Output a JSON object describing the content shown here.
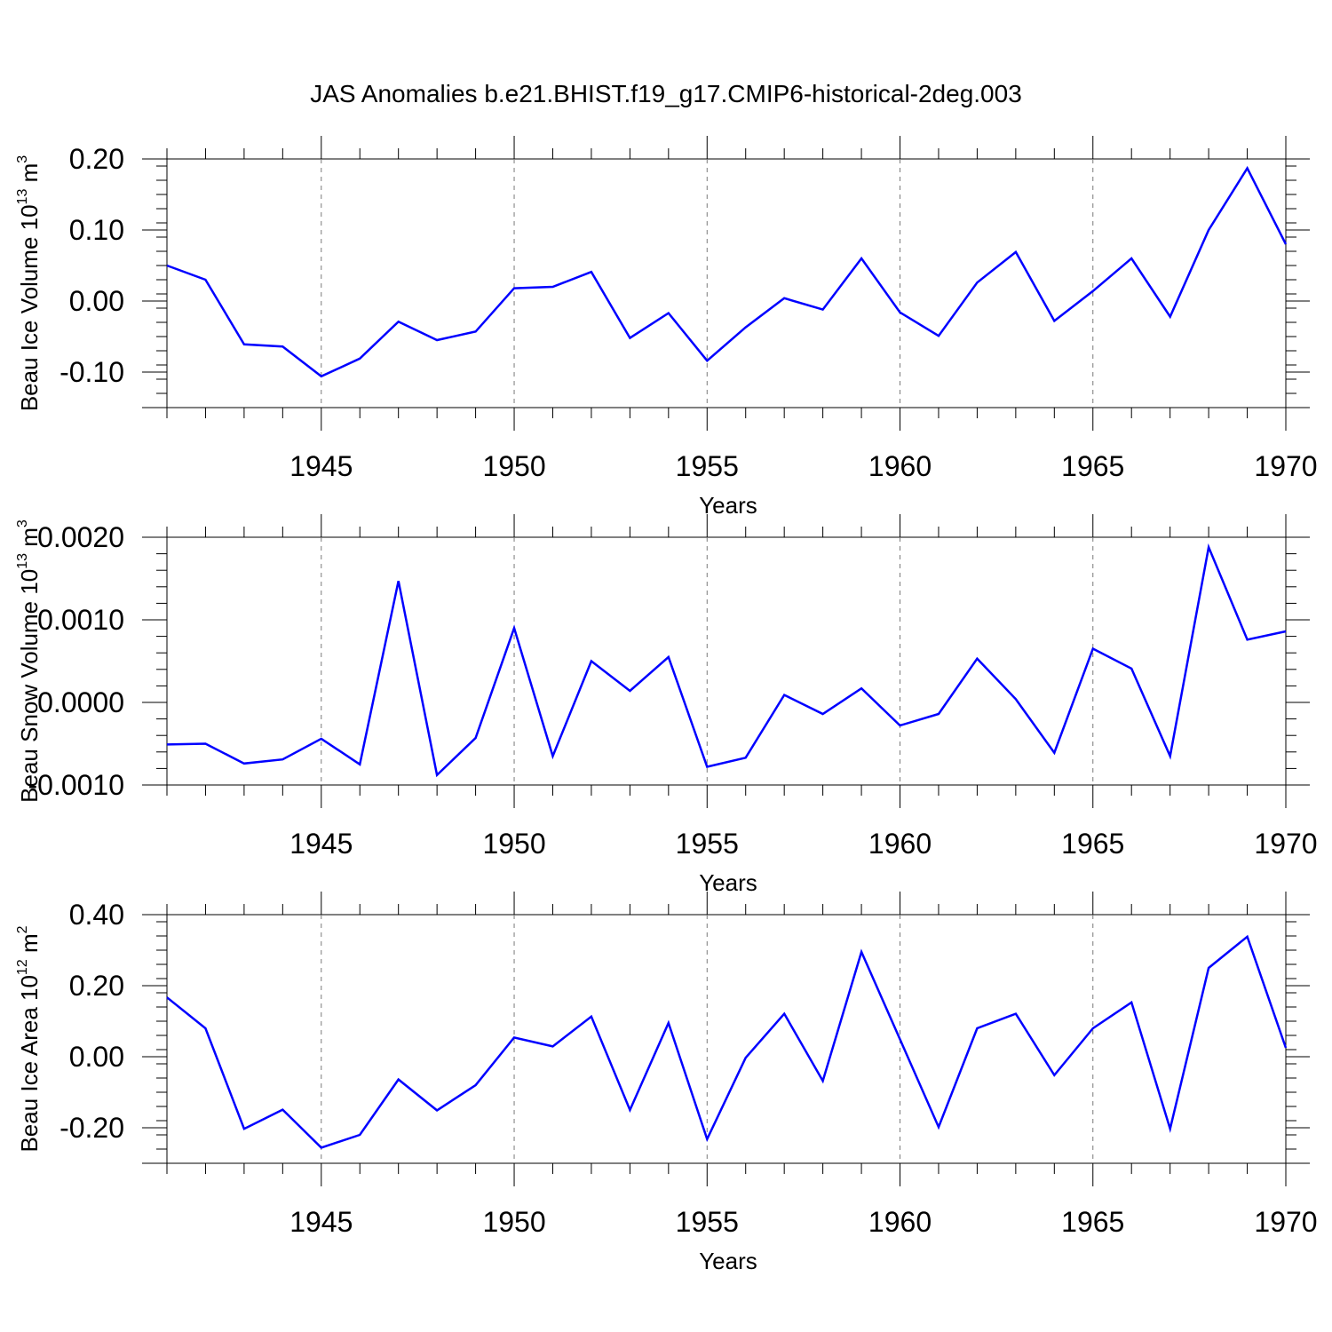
{
  "figure": {
    "title": "JAS Anomalies b.e21.BHIST.f19_g17.CMIP6-historical-2deg.003"
  },
  "chart_data": [
    {
      "type": "line",
      "title": "",
      "ylabel": {
        "text": "Beau Ice Volume 10",
        "exp": "13",
        "unit": " m",
        "unit_exp": "3"
      },
      "xlabel": "Years",
      "xlim": [
        1941,
        1970
      ],
      "ylim": [
        -0.15,
        0.2
      ],
      "yticks": [
        0.2,
        0.1,
        0.0,
        -0.1
      ],
      "ytick_labels": [
        "0.20",
        "0.10",
        "0.00",
        "-0.10"
      ],
      "xticks": [
        1945,
        1950,
        1955,
        1960,
        1965,
        1970
      ],
      "xtick_labels": [
        "1945",
        "1950",
        "1955",
        "1960",
        "1965",
        "1970"
      ],
      "grid": "dashed vertical at major x ticks",
      "line_color": "#0000ff",
      "x": [
        1941,
        1942,
        1943,
        1944,
        1945,
        1946,
        1947,
        1948,
        1949,
        1950,
        1951,
        1952,
        1953,
        1954,
        1955,
        1956,
        1957,
        1958,
        1959,
        1960,
        1961,
        1962,
        1963,
        1964,
        1965,
        1966,
        1967,
        1968,
        1969,
        1970
      ],
      "values": [
        0.05,
        0.03,
        -0.061,
        -0.064,
        -0.106,
        -0.081,
        -0.029,
        -0.055,
        -0.043,
        0.018,
        0.02,
        0.041,
        -0.052,
        -0.017,
        -0.084,
        -0.037,
        0.004,
        -0.012,
        0.06,
        -0.016,
        -0.049,
        0.026,
        0.069,
        -0.028,
        0.014,
        0.06,
        -0.022,
        0.1,
        0.187,
        0.08
      ]
    },
    {
      "type": "line",
      "title": "",
      "ylabel": {
        "text": "Beau Snow Volume 10",
        "exp": "13",
        "unit": " m",
        "unit_exp": "3"
      },
      "xlabel": "Years",
      "xlim": [
        1941,
        1970
      ],
      "ylim": [
        -0.001,
        0.002
      ],
      "yticks": [
        0.002,
        0.001,
        0.0,
        -0.001
      ],
      "ytick_labels": [
        "0.0020",
        "0.0010",
        "0.0000",
        "-0.0010"
      ],
      "xticks": [
        1945,
        1950,
        1955,
        1960,
        1965,
        1970
      ],
      "xtick_labels": [
        "1945",
        "1950",
        "1955",
        "1960",
        "1965",
        "1970"
      ],
      "grid": "dashed vertical at major x ticks",
      "line_color": "#0000ff",
      "x": [
        1941,
        1942,
        1943,
        1944,
        1945,
        1946,
        1947,
        1948,
        1949,
        1950,
        1951,
        1952,
        1953,
        1954,
        1955,
        1956,
        1957,
        1958,
        1959,
        1960,
        1961,
        1962,
        1963,
        1964,
        1965,
        1966,
        1967,
        1968,
        1969,
        1970
      ],
      "values": [
        -0.00051,
        -0.0005,
        -0.00074,
        -0.00069,
        -0.00044,
        -0.00075,
        0.00147,
        -0.00088,
        -0.00043,
        0.0009,
        -0.00065,
        0.0005,
        0.00014,
        0.00055,
        -0.00078,
        -0.00067,
        9e-05,
        -0.00014,
        0.00017,
        -0.00028,
        -0.00014,
        0.00053,
        4e-05,
        -0.00061,
        0.00065,
        0.00041,
        -0.00065,
        0.00188,
        0.00076,
        0.00086
      ]
    },
    {
      "type": "line",
      "title": "",
      "ylabel": {
        "text": "Beau Ice Area 10",
        "exp": "12",
        "unit": " m",
        "unit_exp": "2"
      },
      "xlabel": "Years",
      "xlim": [
        1941,
        1970
      ],
      "ylim": [
        -0.3,
        0.4
      ],
      "yticks": [
        0.4,
        0.2,
        0.0,
        -0.2
      ],
      "ytick_labels": [
        "0.40",
        "0.20",
        "0.00",
        "-0.20"
      ],
      "xticks": [
        1945,
        1950,
        1955,
        1960,
        1965,
        1970
      ],
      "xtick_labels": [
        "1945",
        "1950",
        "1955",
        "1960",
        "1965",
        "1970"
      ],
      "grid": "dashed vertical at major x ticks",
      "line_color": "#0000ff",
      "x": [
        1941,
        1942,
        1943,
        1944,
        1945,
        1946,
        1947,
        1948,
        1949,
        1950,
        1951,
        1952,
        1953,
        1954,
        1955,
        1956,
        1957,
        1958,
        1959,
        1960,
        1961,
        1962,
        1963,
        1964,
        1965,
        1966,
        1967,
        1968,
        1969,
        1970
      ],
      "values": [
        0.167,
        0.08,
        -0.203,
        -0.149,
        -0.256,
        -0.22,
        -0.064,
        -0.151,
        -0.08,
        0.054,
        0.029,
        0.113,
        -0.15,
        0.095,
        -0.232,
        -0.003,
        0.121,
        -0.068,
        0.295,
        0.049,
        -0.198,
        0.08,
        0.121,
        -0.052,
        0.08,
        0.153,
        -0.203,
        0.25,
        0.338,
        0.025
      ]
    }
  ]
}
